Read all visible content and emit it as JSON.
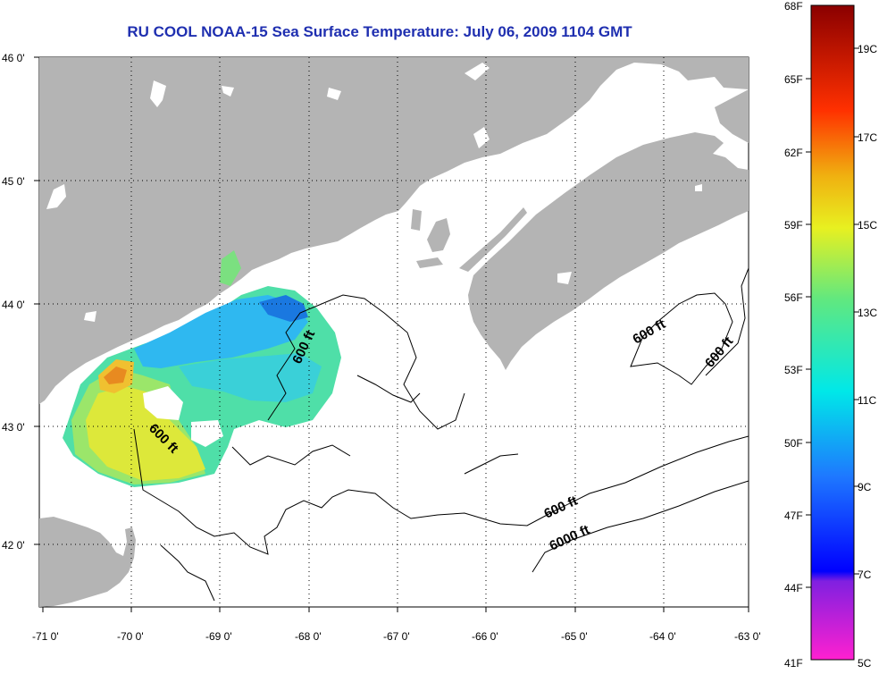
{
  "title": "RU COOL  NOAA-15  Sea Surface Temperature:  July 06, 2009 1104 GMT",
  "map": {
    "lon_ticks": [
      "-71 0'",
      "-70 0'",
      "-69 0'",
      "-68 0'",
      "-67 0'",
      "-66 0'",
      "-65 0'",
      "-64 0'",
      "-63 0'"
    ],
    "lat_ticks": [
      "46 0'",
      "45 0'",
      "44 0'",
      "43 0'",
      "42 0'"
    ],
    "contour_labels": [
      "600 ft",
      "600 ft",
      "600 ft",
      "600 ft",
      "600 ft",
      "6000 ft"
    ],
    "colors": {
      "land": "#b4b4b4",
      "no_data": "#ffffff",
      "grid": "#000000"
    }
  },
  "colorbar": {
    "f_labels": [
      "68F",
      "65F",
      "62F",
      "59F",
      "56F",
      "53F",
      "50F",
      "47F",
      "44F",
      "41F"
    ],
    "c_labels": [
      "19C",
      "17C",
      "15C",
      "13C",
      "11C",
      "9C",
      "7C",
      "5C"
    ]
  }
}
